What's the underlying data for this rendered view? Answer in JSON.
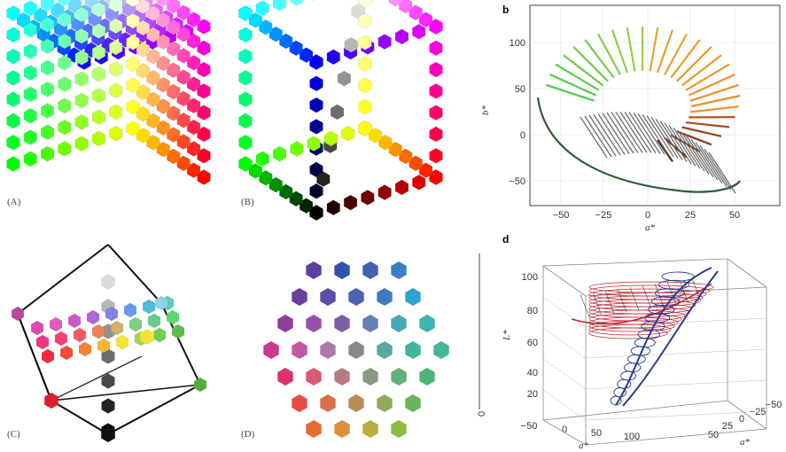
{
  "panels": {
    "A": {
      "label": "(A)"
    },
    "B": {
      "label": "(B)"
    },
    "C": {
      "label": "(C)"
    },
    "D": {
      "label": "(D)"
    }
  },
  "plot_b": {
    "label": "b",
    "xlabel": "a*",
    "ylabel": "b*",
    "xticks": [
      "−50",
      "−25",
      "0",
      "25",
      "50"
    ],
    "yticks": [
      "100",
      "50",
      "0",
      "−50"
    ]
  },
  "plot_d": {
    "label": "d",
    "zlabel": "L*",
    "xlabel": "a*",
    "ylabel": "a*",
    "zticks": [
      "100",
      "80",
      "60",
      "40",
      "20"
    ],
    "z0": "0",
    "xticks": [
      "−50",
      "0",
      "50",
      "100"
    ],
    "yticks": [
      "50",
      "25",
      "0",
      "−25",
      "−50"
    ]
  },
  "colors": {
    "cube_black": "#111111",
    "cube_white": "#f4f4f4",
    "cube_red": "#d81e2a",
    "cube_blue": "#2a2f8c",
    "cube_green": "#4fae3a",
    "cube_cyan": "#8fd0e8",
    "cube_magenta": "#b54a9c",
    "cube_yellow": "#f0e23a",
    "wire_red": "#c2272f",
    "wire_blue": "#2b3d8f"
  }
}
